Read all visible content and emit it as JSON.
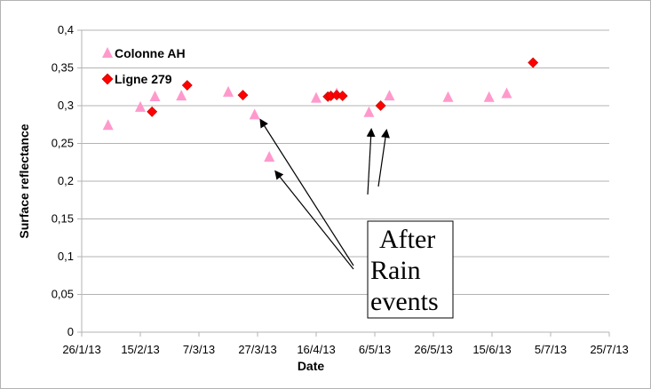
{
  "chart_data": {
    "type": "scatter",
    "xlabel": "Date",
    "ylabel": "Surface reflectance",
    "ylim": [
      0,
      0.4
    ],
    "xlim": [
      "2013-01-26",
      "2013-07-25"
    ],
    "x_ticks": [
      "26/1/13",
      "15/2/13",
      "7/3/13",
      "27/3/13",
      "16/4/13",
      "6/5/13",
      "26/5/13",
      "15/6/13",
      "5/7/13",
      "25/7/13"
    ],
    "y_ticks": [
      "0",
      "0,05",
      "0,1",
      "0,15",
      "0,2",
      "0,25",
      "0,3",
      "0,35",
      "0,4"
    ],
    "grid": "horizontal",
    "legend_position": "top-left",
    "series": [
      {
        "name": "Colonne AH",
        "marker": "triangle",
        "color": "#ff99cc",
        "points": [
          {
            "x": "2013-02-04",
            "y": 0.275
          },
          {
            "x": "2013-02-15",
            "y": 0.299
          },
          {
            "x": "2013-02-20",
            "y": 0.313
          },
          {
            "x": "2013-03-01",
            "y": 0.314
          },
          {
            "x": "2013-03-17",
            "y": 0.319
          },
          {
            "x": "2013-03-26",
            "y": 0.289
          },
          {
            "x": "2013-03-31",
            "y": 0.233
          },
          {
            "x": "2013-04-16",
            "y": 0.311
          },
          {
            "x": "2013-04-23",
            "y": 0.317
          },
          {
            "x": "2013-05-04",
            "y": 0.292
          },
          {
            "x": "2013-05-11",
            "y": 0.314
          },
          {
            "x": "2013-05-31",
            "y": 0.312
          },
          {
            "x": "2013-06-14",
            "y": 0.312
          },
          {
            "x": "2013-06-20",
            "y": 0.317
          }
        ]
      },
      {
        "name": "Ligne 279",
        "marker": "diamond",
        "color": "#ff0000",
        "points": [
          {
            "x": "2013-02-19",
            "y": 0.292
          },
          {
            "x": "2013-03-03",
            "y": 0.327
          },
          {
            "x": "2013-03-22",
            "y": 0.314
          },
          {
            "x": "2013-04-20",
            "y": 0.312
          },
          {
            "x": "2013-04-21",
            "y": 0.313
          },
          {
            "x": "2013-04-23",
            "y": 0.314
          },
          {
            "x": "2013-04-25",
            "y": 0.313
          },
          {
            "x": "2013-05-08",
            "y": 0.3
          },
          {
            "x": "2013-06-29",
            "y": 0.357
          }
        ]
      }
    ],
    "annotation": {
      "lines": [
        "After",
        "Rain",
        "events"
      ]
    }
  }
}
